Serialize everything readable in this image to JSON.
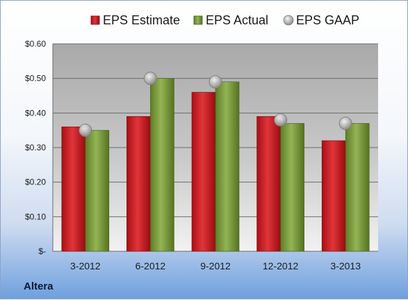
{
  "company": "Altera",
  "colors": {
    "estimate": "#c8161d",
    "actual": "#7a9a3a",
    "gaap": "#b8b8b8"
  },
  "chart_data": {
    "type": "bar",
    "categories": [
      "3-2012",
      "6-2012",
      "9-2012",
      "12-2012",
      "3-2013"
    ],
    "series": [
      {
        "name": "EPS Estimate",
        "type": "bar",
        "values": [
          0.36,
          0.39,
          0.46,
          0.39,
          0.32
        ]
      },
      {
        "name": "EPS Actual",
        "type": "bar",
        "values": [
          0.35,
          0.5,
          0.49,
          0.37,
          0.37
        ]
      },
      {
        "name": "EPS GAAP",
        "type": "scatter",
        "values": [
          0.35,
          0.5,
          0.49,
          0.38,
          0.37
        ]
      }
    ],
    "ylim": [
      0,
      0.6
    ],
    "yticks": [
      0,
      0.1,
      0.2,
      0.3,
      0.4,
      0.5,
      0.6
    ],
    "ytick_labels": [
      "$-",
      "$0.10",
      "$0.20",
      "$0.30",
      "$0.40",
      "$0.50",
      "$0.60"
    ],
    "legend_position": "top",
    "grid": true
  }
}
